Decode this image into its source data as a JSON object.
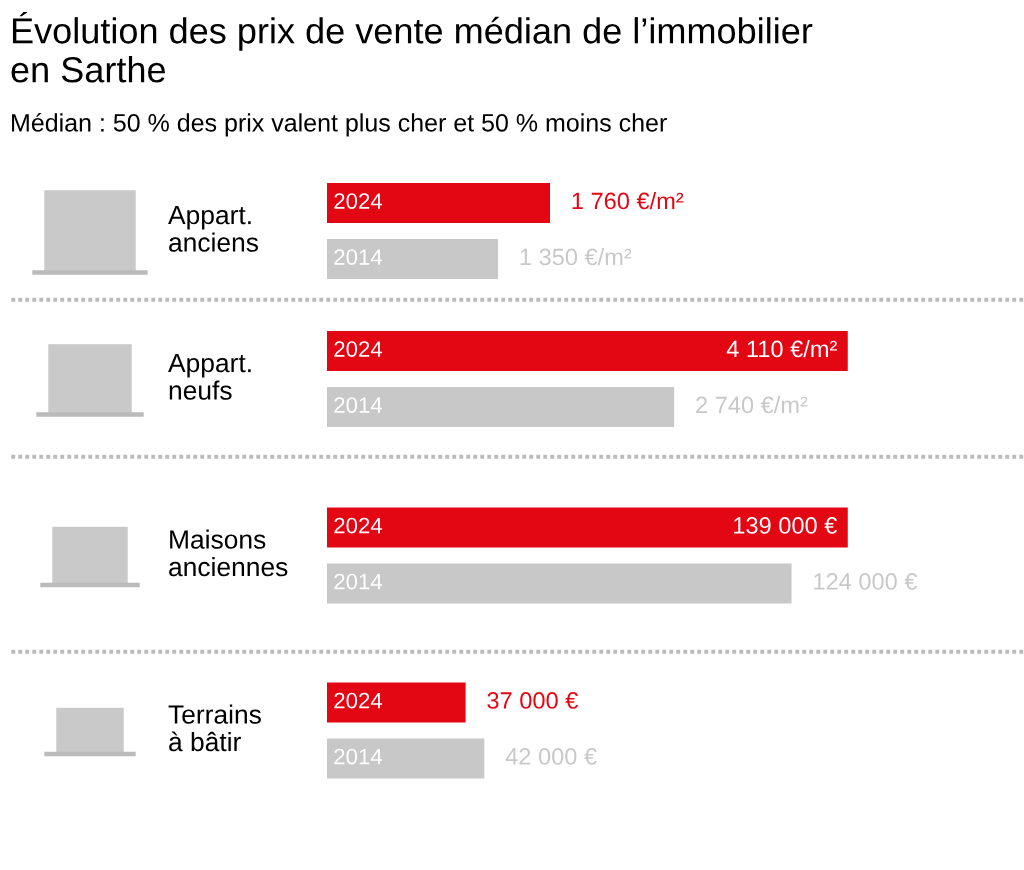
{
  "chart_data": [
    {
      "type": "bar",
      "orientation": "horizontal",
      "title": "Évolution des prix de vente médian de l’immobilier\nen Sarthe",
      "subtitle": "Médian : 50 % des prix valent plus cher et 50 % moins cher",
      "categories": [
        "Appart.\nanciens",
        "Appart.\nneufs"
      ],
      "legend": false,
      "series": [
        {
          "name": "2024",
          "color": "#e30613",
          "values": [
            1760,
            4110
          ],
          "value_labels": [
            "1 760 €/m²",
            "4 110 €/m²"
          ]
        },
        {
          "name": "2014",
          "color": "#c8c8c8",
          "values": [
            1350,
            2740
          ],
          "value_labels": [
            "1 350 €/m²",
            "2 740 €/m²"
          ]
        }
      ]
    },
    {
      "type": "bar",
      "orientation": "horizontal",
      "categories": [
        "Maisons\nanciennes",
        "Terrains\nà bâtir"
      ],
      "legend": false,
      "series": [
        {
          "name": "2024",
          "color": "#e30613",
          "values": [
            139000,
            37000
          ],
          "value_labels": [
            "139 000 €",
            "37 000 €"
          ]
        },
        {
          "name": "2014",
          "color": "#c8c8c8",
          "values": [
            124000,
            42000
          ],
          "value_labels": [
            "124 000 €",
            "42 000 €"
          ]
        }
      ]
    }
  ]
}
